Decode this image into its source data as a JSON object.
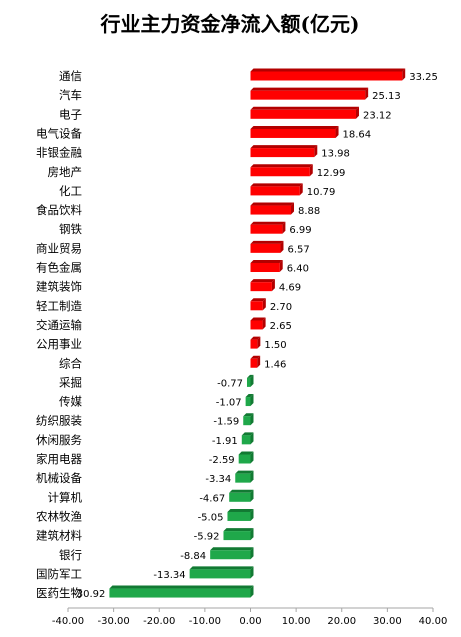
{
  "chart_data": {
    "type": "bar",
    "orientation": "horizontal",
    "title": "行业主力资金净流入额(亿元)",
    "categories": [
      "通信",
      "汽车",
      "电子",
      "电气设备",
      "非银金融",
      "房地产",
      "化工",
      "食品饮料",
      "钢铁",
      "商业贸易",
      "有色金属",
      "建筑装饰",
      "轻工制造",
      "交通运输",
      "公用事业",
      "综合",
      "采掘",
      "传媒",
      "纺织服装",
      "休闲服务",
      "家用电器",
      "机械设备",
      "计算机",
      "农林牧渔",
      "建筑材料",
      "银行",
      "国防军工",
      "医药生物"
    ],
    "values": [
      33.25,
      25.13,
      23.12,
      18.64,
      13.98,
      12.99,
      10.79,
      8.88,
      6.99,
      6.57,
      6.4,
      4.69,
      2.7,
      2.65,
      1.5,
      1.46,
      -0.77,
      -1.07,
      -1.59,
      -1.91,
      -2.59,
      -3.34,
      -4.67,
      -5.05,
      -5.92,
      -8.84,
      -13.34,
      -30.92
    ],
    "value_labels": [
      "33.25",
      "25.13",
      "23.12",
      "18.64",
      "13.98",
      "12.99",
      "10.79",
      "8.88",
      "6.99",
      "6.57",
      "6.40",
      "4.69",
      "2.70",
      "2.65",
      "1.50",
      "1.46",
      "-0.77",
      "-1.07",
      "-1.59",
      "-1.91",
      "-2.59",
      "-3.34",
      "-4.67",
      "-5.05",
      "-5.92",
      "-8.84",
      "-13.34",
      "-30.92"
    ],
    "xlim": [
      -40,
      40
    ],
    "xticks": [
      -40,
      -30,
      -20,
      -10,
      0,
      10,
      20,
      30,
      40
    ],
    "xtick_labels": [
      "-40.00",
      "-30.00",
      "-20.00",
      "-10.00",
      "0.00",
      "10.00",
      "20.00",
      "30.00",
      "40.00"
    ],
    "grid": false,
    "legend": "none",
    "colors": {
      "positive": "#ff0000",
      "positive_shade": "#b30000",
      "negative": "#1fa84a",
      "negative_shade": "#127a33",
      "axis": "#a6a6a6"
    }
  }
}
